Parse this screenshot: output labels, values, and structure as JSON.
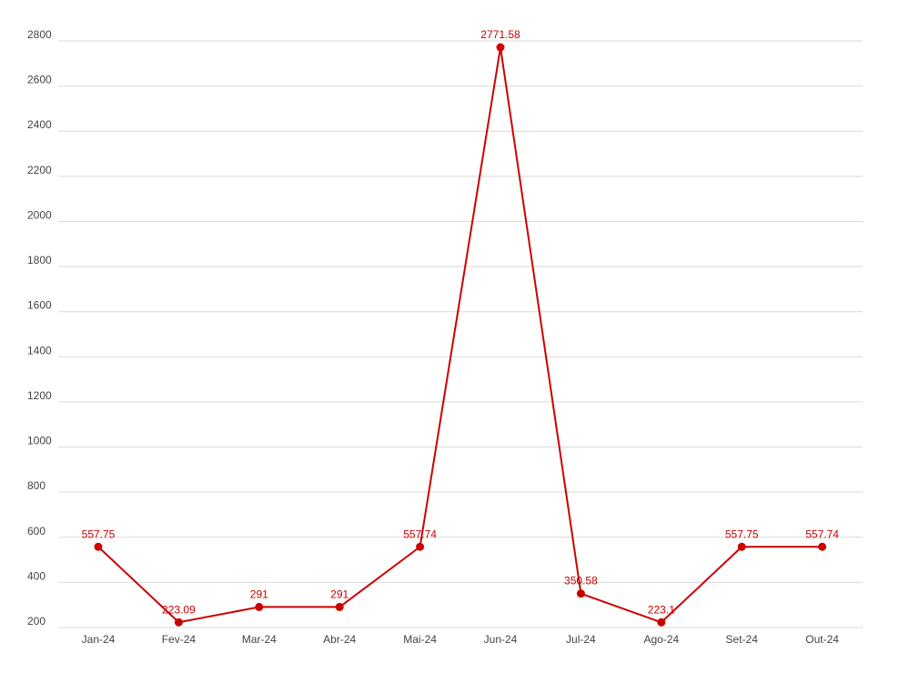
{
  "chart_data": {
    "type": "line",
    "title": "",
    "xlabel": "",
    "ylabel": "",
    "categories": [
      "Jan-24",
      "Fev-24",
      "Mar-24",
      "Abr-24",
      "Mai-24",
      "Jun-24",
      "Jul-24",
      "Ago-24",
      "Set-24",
      "Out-24"
    ],
    "series": [
      {
        "values": [
          557.75,
          223.09,
          291,
          291,
          557.74,
          2771.58,
          350.58,
          223.1,
          557.75,
          557.74
        ],
        "labels": [
          "557.75",
          "223.09",
          "291",
          "291",
          "557.74",
          "2771.58",
          "350.58",
          "223.1",
          "557.75",
          "557.74"
        ],
        "color": "#cc0000"
      }
    ],
    "ylim": [
      200,
      2800
    ],
    "yticks": [
      200,
      400,
      600,
      800,
      1000,
      1200,
      1400,
      1600,
      1800,
      2000,
      2200,
      2400,
      2600,
      2800
    ],
    "ytick_labels": [
      "200",
      "400",
      "600",
      "800",
      "1000",
      "1200",
      "1400",
      "1600",
      "1800",
      "2000",
      "2200",
      "2400",
      "2600",
      "2800"
    ],
    "grid": true,
    "legend": "none"
  }
}
